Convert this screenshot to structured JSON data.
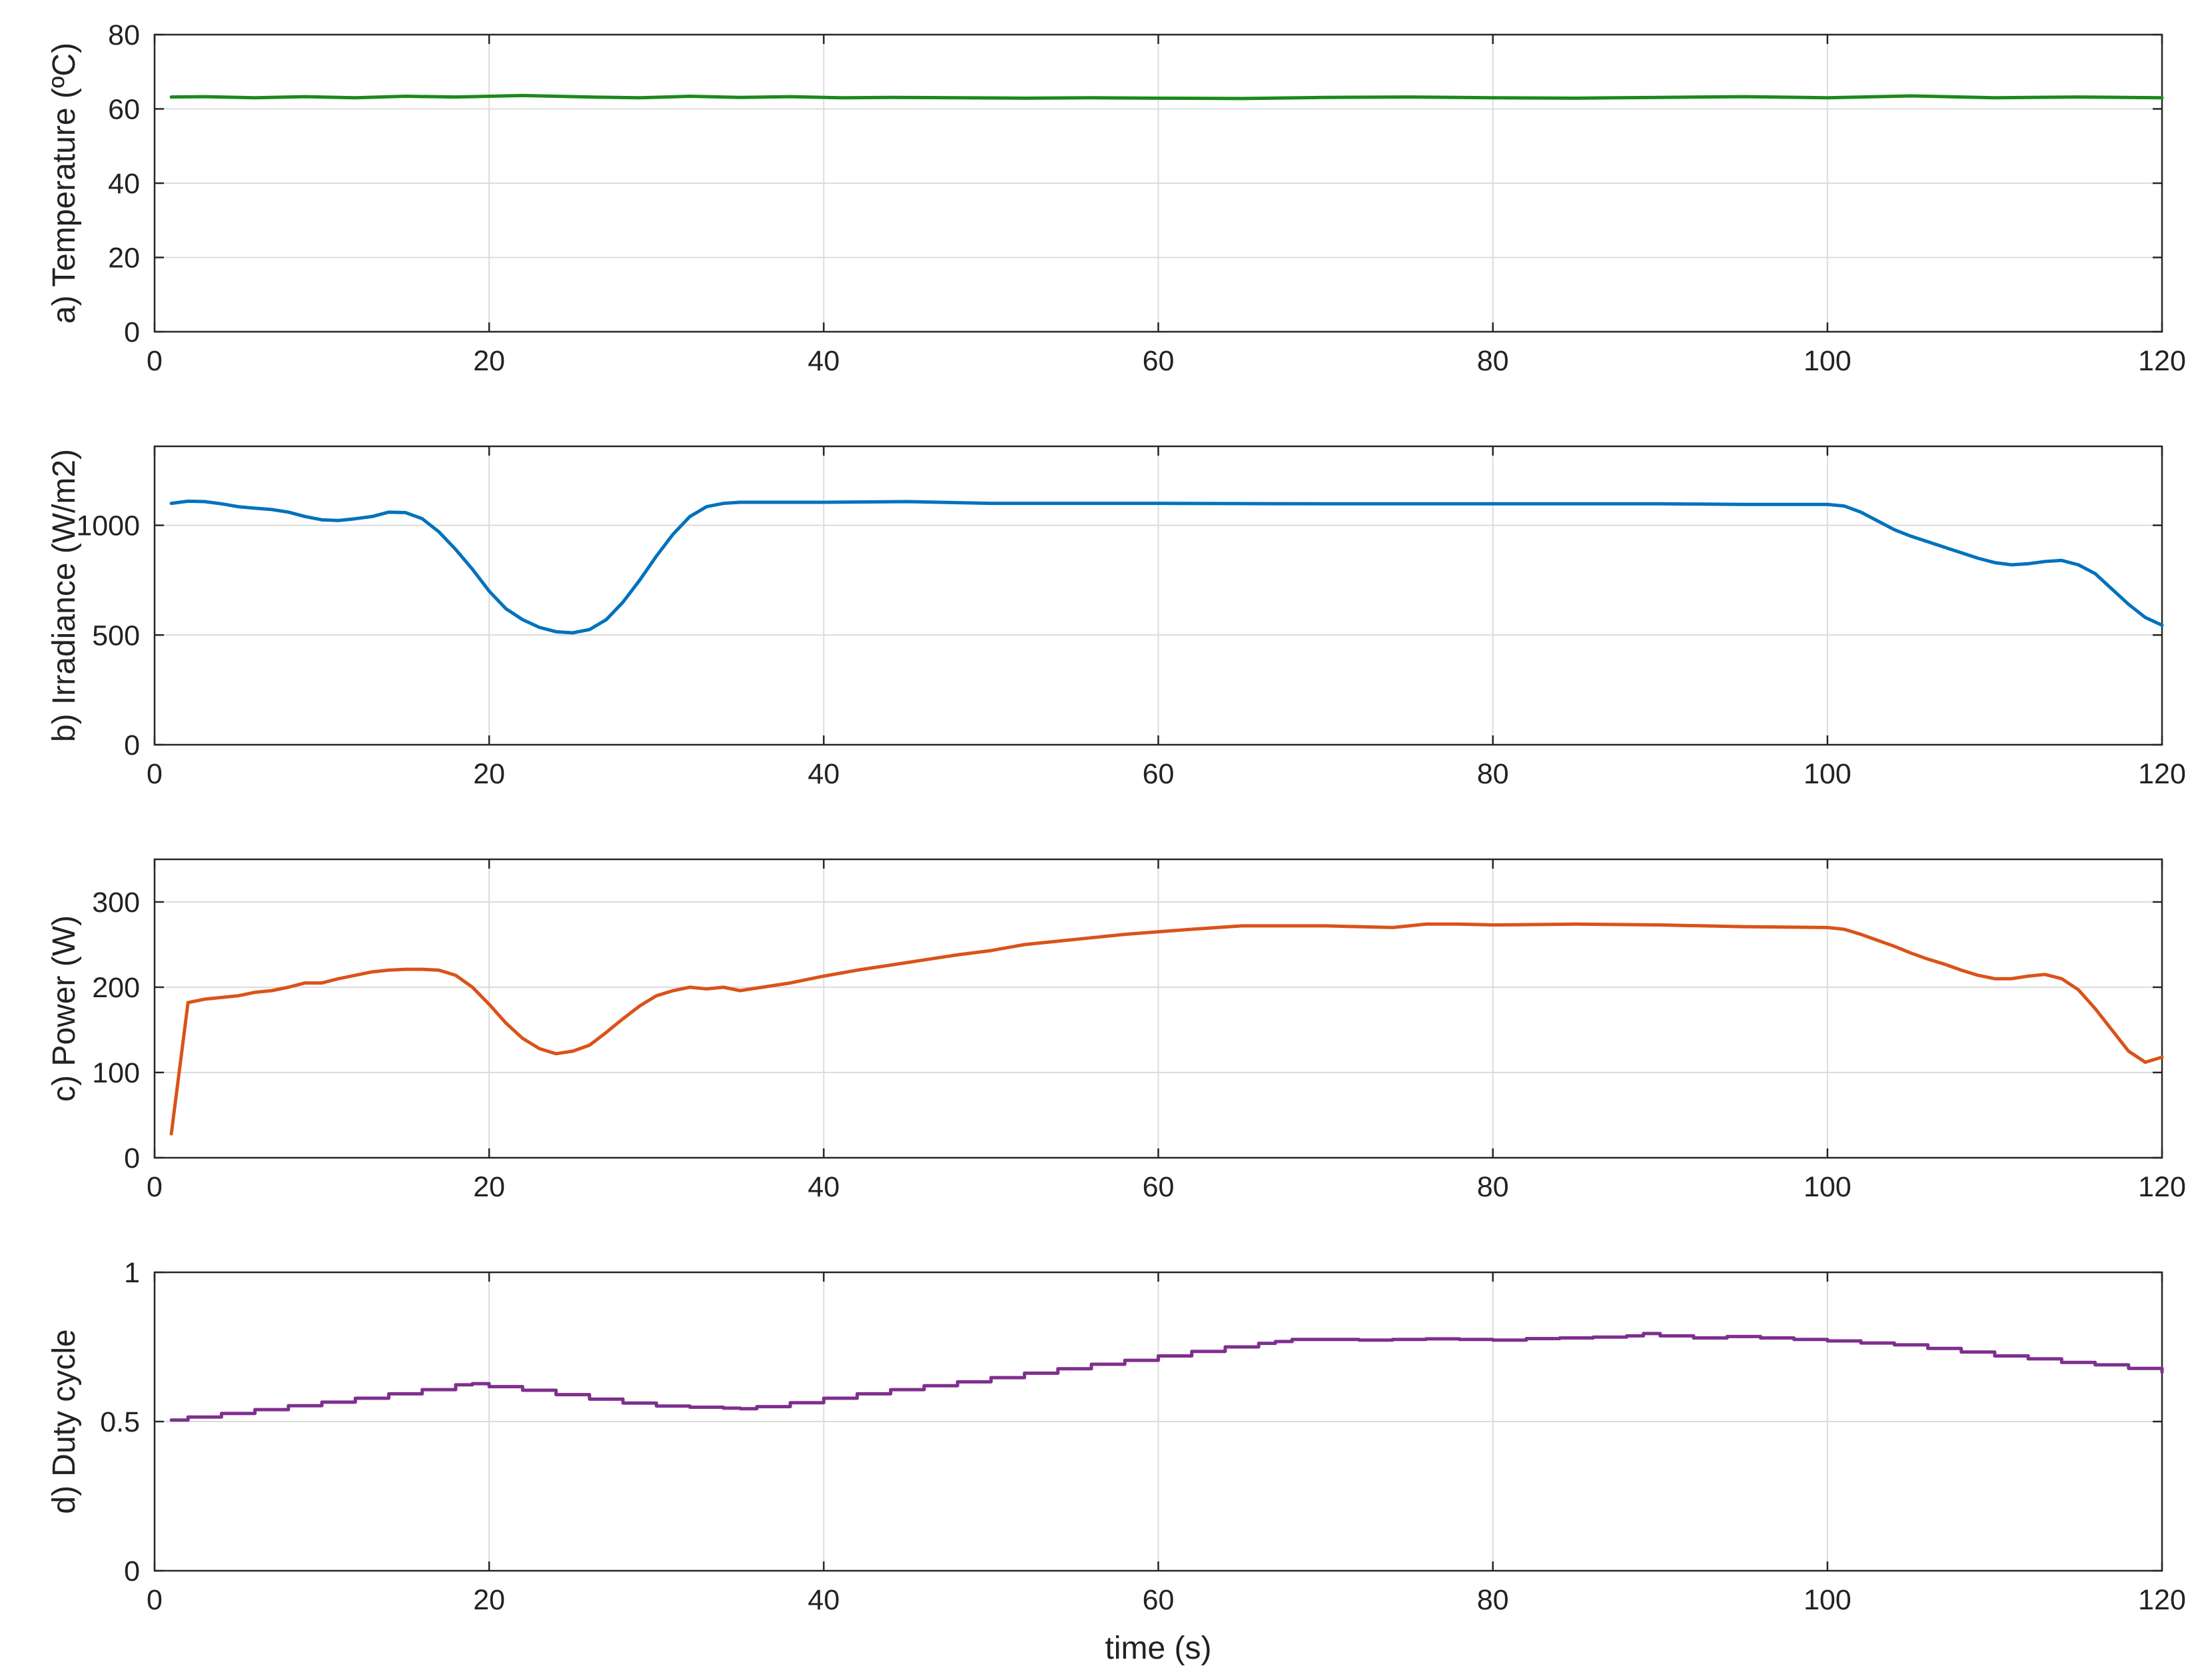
{
  "chart_data": [
    {
      "type": "line",
      "ylabel": "a) Temperature (ºC)",
      "xlabel": "",
      "xlim": [
        0,
        120
      ],
      "ylim": [
        0,
        80
      ],
      "xticks": [
        "0",
        "20",
        "40",
        "60",
        "80",
        "100",
        "120"
      ],
      "yticks": [
        "0",
        "20",
        "40",
        "60",
        "80"
      ],
      "grid": true,
      "color": "#1a8a1a",
      "step": false,
      "series": [
        {
          "x": [
            1,
            3,
            6,
            9,
            12,
            15,
            18,
            22,
            26,
            29,
            32,
            35,
            38,
            41,
            44,
            48,
            52,
            56,
            60,
            65,
            70,
            75,
            80,
            85,
            90,
            95,
            100,
            105,
            110,
            115,
            120
          ],
          "values": [
            63.2,
            63.3,
            63.0,
            63.3,
            63.0,
            63.4,
            63.2,
            63.6,
            63.2,
            63.0,
            63.4,
            63.1,
            63.3,
            63.0,
            63.1,
            63.0,
            62.9,
            63.0,
            62.9,
            62.8,
            63.1,
            63.2,
            63.0,
            62.9,
            63.1,
            63.3,
            63.0,
            63.5,
            63.0,
            63.2,
            63.0
          ]
        }
      ]
    },
    {
      "type": "line",
      "ylabel": "b) Irradiance (W/m2)",
      "xlabel": "",
      "xlim": [
        0,
        120
      ],
      "ylim": [
        0,
        1360
      ],
      "xticks": [
        "0",
        "20",
        "40",
        "60",
        "80",
        "100",
        "120"
      ],
      "yticks": [
        "0",
        "500",
        "1000"
      ],
      "ytick_values": [
        0,
        500,
        1000
      ],
      "grid": true,
      "color": "#0072bd",
      "step": false,
      "series": [
        {
          "x": [
            1,
            2,
            3,
            4,
            5,
            6,
            7,
            8,
            9,
            10,
            11,
            12,
            13,
            14,
            15,
            16,
            17,
            18,
            19,
            20,
            21,
            22,
            23,
            24,
            25,
            26,
            27,
            28,
            29,
            30,
            31,
            32,
            33,
            34,
            35,
            40,
            45,
            50,
            60,
            70,
            80,
            90,
            95,
            100,
            101,
            102,
            103,
            104,
            105,
            106,
            107,
            108,
            109,
            110,
            111,
            112,
            113,
            114,
            115,
            116,
            117,
            118,
            119,
            120
          ],
          "values": [
            1100,
            1110,
            1108,
            1098,
            1085,
            1078,
            1072,
            1060,
            1040,
            1025,
            1022,
            1030,
            1040,
            1060,
            1058,
            1030,
            970,
            890,
            800,
            700,
            620,
            570,
            535,
            515,
            510,
            525,
            570,
            650,
            750,
            860,
            960,
            1040,
            1085,
            1100,
            1105,
            1105,
            1108,
            1100,
            1100,
            1098,
            1098,
            1098,
            1095,
            1095,
            1088,
            1060,
            1020,
            980,
            950,
            925,
            900,
            875,
            850,
            830,
            820,
            825,
            835,
            840,
            820,
            780,
            710,
            640,
            580,
            545
          ]
        }
      ]
    },
    {
      "type": "line",
      "ylabel": "c) Power (W)",
      "xlabel": "",
      "xlim": [
        0,
        120
      ],
      "ylim": [
        0,
        350
      ],
      "xticks": [
        "0",
        "20",
        "40",
        "60",
        "80",
        "100",
        "120"
      ],
      "yticks": [
        "0",
        "100",
        "200",
        "300"
      ],
      "ytick_values": [
        0,
        100,
        200,
        300
      ],
      "grid": true,
      "color": "#d95319",
      "step": false,
      "series": [
        {
          "x": [
            1,
            2,
            3,
            4,
            5,
            6,
            7,
            8,
            9,
            10,
            11,
            12,
            13,
            14,
            15,
            16,
            17,
            18,
            19,
            20,
            21,
            22,
            23,
            24,
            25,
            26,
            27,
            28,
            29,
            30,
            31,
            32,
            33,
            34,
            35,
            36,
            38,
            40,
            42,
            44,
            46,
            48,
            50,
            52,
            55,
            58,
            60,
            62,
            65,
            67,
            70,
            72,
            74,
            75,
            76,
            78,
            80,
            85,
            90,
            95,
            100,
            101,
            102,
            103,
            104,
            105,
            106,
            107,
            108,
            109,
            110,
            111,
            112,
            113,
            114,
            115,
            116,
            117,
            118,
            119,
            120
          ],
          "values": [
            28,
            182,
            186,
            188,
            190,
            194,
            196,
            200,
            205,
            205,
            210,
            214,
            218,
            220,
            221,
            221,
            220,
            214,
            200,
            180,
            158,
            140,
            128,
            122,
            125,
            132,
            147,
            163,
            178,
            190,
            196,
            200,
            198,
            200,
            196,
            199,
            205,
            213,
            220,
            226,
            232,
            238,
            243,
            250,
            256,
            262,
            265,
            268,
            272,
            272,
            272,
            271,
            270,
            272,
            274,
            274,
            273,
            274,
            273,
            271,
            270,
            268,
            262,
            255,
            248,
            240,
            233,
            227,
            220,
            214,
            210,
            210,
            213,
            215,
            210,
            197,
            175,
            150,
            125,
            112,
            118
          ]
        }
      ]
    },
    {
      "type": "line",
      "ylabel": "d) Duty cycle",
      "xlabel": "time (s)",
      "xlim": [
        0,
        120
      ],
      "ylim": [
        0,
        1
      ],
      "xticks": [
        "0",
        "20",
        "40",
        "60",
        "80",
        "100",
        "120"
      ],
      "yticks": [
        "0",
        "0.5",
        "1"
      ],
      "ytick_values": [
        0,
        0.5,
        1
      ],
      "grid": true,
      "color": "#7e2f8e",
      "step": true,
      "series": [
        {
          "x": [
            1,
            2,
            4,
            6,
            8,
            10,
            12,
            14,
            16,
            18,
            19,
            20,
            22,
            24,
            26,
            28,
            30,
            32,
            34,
            35,
            36,
            38,
            40,
            42,
            44,
            46,
            48,
            50,
            52,
            54,
            56,
            58,
            60,
            62,
            64,
            66,
            67,
            68,
            70,
            72,
            74,
            76,
            78,
            80,
            82,
            84,
            86,
            88,
            89,
            90,
            92,
            94,
            96,
            98,
            100,
            102,
            104,
            106,
            108,
            110,
            112,
            114,
            116,
            118,
            120
          ],
          "values": [
            0.505,
            0.515,
            0.527,
            0.54,
            0.553,
            0.565,
            0.578,
            0.593,
            0.607,
            0.623,
            0.627,
            0.617,
            0.605,
            0.59,
            0.575,
            0.562,
            0.552,
            0.548,
            0.545,
            0.543,
            0.55,
            0.563,
            0.578,
            0.593,
            0.607,
            0.62,
            0.633,
            0.647,
            0.662,
            0.677,
            0.692,
            0.705,
            0.72,
            0.735,
            0.75,
            0.762,
            0.768,
            0.775,
            0.775,
            0.773,
            0.775,
            0.777,
            0.775,
            0.773,
            0.778,
            0.78,
            0.783,
            0.787,
            0.795,
            0.787,
            0.78,
            0.785,
            0.78,
            0.775,
            0.77,
            0.763,
            0.757,
            0.745,
            0.733,
            0.72,
            0.71,
            0.698,
            0.69,
            0.678,
            0.665
          ]
        }
      ]
    }
  ]
}
